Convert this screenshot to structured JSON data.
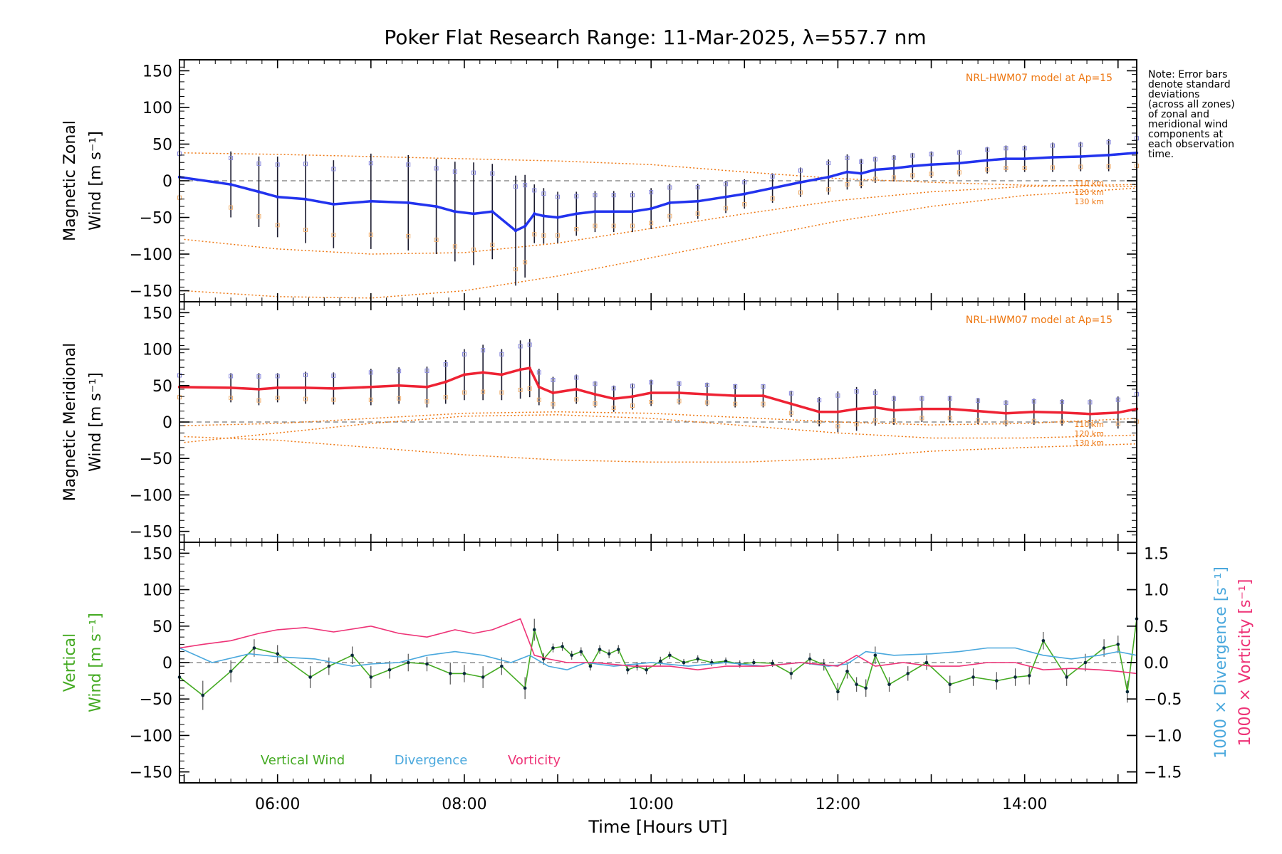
{
  "figure_title": "Poker Flat Research Range: 11-Mar-2025, λ=557.7 nm",
  "note_lines": [
    "Note: Error bars",
    "denote standard",
    "deviations",
    "(across all zones)",
    "of zonal and",
    "meridional wind",
    "components at",
    "each observation",
    "time."
  ],
  "colors": {
    "zonal": "#2233ee",
    "meridional": "#ee2233",
    "vertical": "#44aa22",
    "divergence": "#4aa8dd",
    "vorticity": "#ee3377",
    "model": "#ee7711",
    "errorbar": "#1a1a2e",
    "scatter": "#8888dd"
  },
  "chart_data": [
    {
      "type": "line",
      "panel": "zonal",
      "ylabel_lines": [
        "Magnetic Zonal",
        "Wind [m s⁻¹]"
      ],
      "ylim": [
        -165,
        165
      ],
      "yticks": [
        -150,
        -100,
        -50,
        0,
        50,
        100,
        150
      ],
      "annotation": "NRL-HWM07 model at Ap=15",
      "model_labels": [
        "110 km",
        "120 km",
        "130 km"
      ],
      "model_curves": [
        {
          "name": "110 km",
          "x": [
            5,
            6,
            7,
            8,
            9,
            10,
            11,
            12,
            13,
            14,
            15.2
          ],
          "y": [
            38,
            36,
            33,
            30,
            27,
            22,
            12,
            3,
            -2,
            -6,
            -8
          ]
        },
        {
          "name": "120 km",
          "x": [
            5,
            6,
            7,
            8,
            9,
            10,
            11,
            12,
            13,
            14,
            15.2
          ],
          "y": [
            -80,
            -93,
            -100,
            -98,
            -85,
            -65,
            -45,
            -27,
            -15,
            -8,
            -5
          ]
        },
        {
          "name": "130 km",
          "x": [
            5,
            6,
            7,
            8,
            9,
            10,
            11,
            12,
            13,
            14,
            15.2
          ],
          "y": [
            -150,
            -158,
            -160,
            -150,
            -130,
            -105,
            -80,
            -55,
            -35,
            -20,
            -10
          ]
        }
      ],
      "series": [
        {
          "name": "Magnetic Zonal Wind",
          "x": [
            4.95,
            5.5,
            5.8,
            6.0,
            6.3,
            6.6,
            7.0,
            7.4,
            7.7,
            7.9,
            8.1,
            8.3,
            8.55,
            8.65,
            8.75,
            8.85,
            9.0,
            9.2,
            9.4,
            9.6,
            9.8,
            10.0,
            10.2,
            10.5,
            10.8,
            11.0,
            11.3,
            11.6,
            11.9,
            12.1,
            12.25,
            12.4,
            12.6,
            12.8,
            13.0,
            13.3,
            13.6,
            13.8,
            14.0,
            14.3,
            14.6,
            14.9,
            15.2
          ],
          "y": [
            5,
            -5,
            -15,
            -22,
            -25,
            -32,
            -28,
            -30,
            -35,
            -42,
            -45,
            -42,
            -68,
            -62,
            -45,
            -48,
            -50,
            -45,
            -42,
            -42,
            -42,
            -38,
            -30,
            -28,
            -22,
            -18,
            -10,
            -2,
            5,
            12,
            10,
            15,
            17,
            20,
            22,
            24,
            28,
            30,
            30,
            32,
            33,
            35,
            38
          ],
          "err": [
            40,
            45,
            48,
            55,
            60,
            60,
            65,
            65,
            65,
            68,
            70,
            65,
            75,
            70,
            40,
            38,
            35,
            30,
            28,
            28,
            28,
            28,
            26,
            24,
            22,
            20,
            20,
            20,
            24,
            24,
            20,
            18,
            18,
            18,
            18,
            18,
            18,
            18,
            18,
            20,
            20,
            22,
            25
          ]
        }
      ]
    },
    {
      "type": "line",
      "panel": "meridional",
      "ylabel_lines": [
        "Magnetic Meridional",
        "Wind [m s⁻¹]"
      ],
      "ylim": [
        -165,
        165
      ],
      "yticks": [
        -150,
        -100,
        -50,
        0,
        50,
        100,
        150
      ],
      "annotation": "NRL-HWM07 model at Ap=15",
      "model_labels": [
        "110 km",
        "120 km",
        "130 km"
      ],
      "model_curves": [
        {
          "name": "110 km",
          "x": [
            5,
            6,
            7,
            8,
            9,
            10,
            11,
            12,
            13,
            14,
            15.2
          ],
          "y": [
            -5,
            -2,
            5,
            12,
            14,
            12,
            6,
            0,
            -4,
            -2,
            5
          ]
        },
        {
          "name": "120 km",
          "x": [
            5,
            6,
            7,
            8,
            9,
            10,
            11,
            12,
            13,
            14,
            15.2
          ],
          "y": [
            -28,
            -15,
            -2,
            8,
            10,
            5,
            -5,
            -15,
            -22,
            -22,
            -18
          ]
        },
        {
          "name": "130 km",
          "x": [
            5,
            6,
            7,
            8,
            9,
            10,
            11,
            12,
            13,
            14,
            15.2
          ],
          "y": [
            -20,
            -25,
            -35,
            -45,
            -52,
            -55,
            -55,
            -50,
            -40,
            -35,
            -30
          ]
        }
      ],
      "series": [
        {
          "name": "Magnetic Meridional Wind",
          "x": [
            4.95,
            5.5,
            5.8,
            6.0,
            6.3,
            6.6,
            7.0,
            7.3,
            7.6,
            7.8,
            8.0,
            8.2,
            8.4,
            8.6,
            8.7,
            8.8,
            8.95,
            9.2,
            9.4,
            9.6,
            9.8,
            10.0,
            10.3,
            10.6,
            10.9,
            11.2,
            11.5,
            11.8,
            12.0,
            12.2,
            12.4,
            12.6,
            12.9,
            13.2,
            13.5,
            13.8,
            14.1,
            14.4,
            14.7,
            15.0,
            15.2
          ],
          "y": [
            48,
            47,
            45,
            47,
            47,
            46,
            48,
            50,
            48,
            55,
            65,
            68,
            65,
            72,
            74,
            48,
            40,
            45,
            38,
            32,
            35,
            40,
            40,
            38,
            36,
            36,
            25,
            14,
            14,
            18,
            20,
            16,
            18,
            18,
            15,
            12,
            14,
            13,
            11,
            13,
            18
          ],
          "err": [
            20,
            20,
            22,
            20,
            22,
            22,
            25,
            25,
            28,
            30,
            35,
            38,
            35,
            40,
            40,
            25,
            22,
            20,
            18,
            18,
            18,
            18,
            16,
            16,
            16,
            16,
            18,
            20,
            28,
            30,
            25,
            20,
            18,
            18,
            18,
            18,
            18,
            18,
            20,
            22,
            25
          ]
        }
      ]
    },
    {
      "type": "line",
      "panel": "vertical",
      "ylabel_lines": [
        "Vertical",
        "Wind [m s⁻¹]"
      ],
      "ylim": [
        -165,
        165
      ],
      "yticks": [
        -150,
        -100,
        -50,
        0,
        50,
        100,
        150
      ],
      "y2label_lines": [
        "1000 × Vorticity [s⁻¹]",
        "1000 × Divergence [s⁻¹]"
      ],
      "y2lim": [
        -1.65,
        1.65
      ],
      "y2ticks": [
        -1.5,
        -1.0,
        -0.5,
        0.0,
        0.5,
        1.0,
        1.5
      ],
      "y2ticklabels": [
        "−1.5",
        "−1.0",
        "−0.5",
        "0.0",
        "0.5",
        "1.0",
        "1.5"
      ],
      "xlabel": "Time [Hours UT]",
      "xlim": [
        4.95,
        15.2
      ],
      "xticks": [
        6,
        8,
        10,
        12,
        14
      ],
      "xticklabels": [
        "06:00",
        "08:00",
        "10:00",
        "12:00",
        "14:00"
      ],
      "legend": [
        "Vertical Wind",
        "Divergence",
        "Vorticity"
      ],
      "series": [
        {
          "name": "Vertical Wind",
          "axis": "left",
          "x": [
            4.95,
            5.2,
            5.5,
            5.75,
            6.0,
            6.35,
            6.55,
            6.8,
            7.0,
            7.2,
            7.4,
            7.6,
            7.85,
            8.0,
            8.2,
            8.4,
            8.65,
            8.75,
            8.85,
            8.95,
            9.05,
            9.15,
            9.25,
            9.35,
            9.45,
            9.55,
            9.65,
            9.75,
            9.85,
            9.95,
            10.1,
            10.2,
            10.35,
            10.5,
            10.65,
            10.8,
            10.95,
            11.1,
            11.3,
            11.5,
            11.7,
            11.85,
            12.0,
            12.1,
            12.2,
            12.3,
            12.4,
            12.55,
            12.75,
            12.95,
            13.2,
            13.45,
            13.7,
            13.9,
            14.05,
            14.2,
            14.45,
            14.65,
            14.85,
            15.0,
            15.1,
            15.2
          ],
          "y": [
            -20,
            -45,
            -12,
            20,
            12,
            -20,
            -5,
            10,
            -20,
            -10,
            0,
            -2,
            -15,
            -15,
            -20,
            -5,
            -35,
            45,
            5,
            20,
            22,
            10,
            15,
            -5,
            18,
            12,
            18,
            -10,
            -5,
            -10,
            2,
            10,
            0,
            5,
            0,
            2,
            -2,
            0,
            -1,
            -15,
            5,
            -3,
            -40,
            -12,
            -30,
            -35,
            10,
            -30,
            -15,
            0,
            -30,
            -20,
            -25,
            -20,
            -18,
            30,
            -20,
            0,
            20,
            25,
            -40,
            60
          ],
          "err": [
            15,
            20,
            15,
            12,
            12,
            15,
            12,
            12,
            15,
            12,
            12,
            10,
            15,
            12,
            15,
            12,
            15,
            15,
            8,
            6,
            6,
            6,
            6,
            6,
            6,
            6,
            6,
            6,
            6,
            6,
            6,
            5,
            5,
            5,
            5,
            5,
            5,
            5,
            5,
            8,
            8,
            8,
            12,
            10,
            10,
            12,
            12,
            10,
            10,
            10,
            12,
            12,
            12,
            12,
            12,
            12,
            12,
            12,
            12,
            12,
            15,
            15
          ]
        },
        {
          "name": "Divergence",
          "axis": "right",
          "x": [
            4.95,
            5.3,
            5.7,
            6.0,
            6.4,
            6.8,
            7.0,
            7.3,
            7.6,
            7.9,
            8.2,
            8.5,
            8.7,
            8.9,
            9.1,
            9.3,
            9.6,
            10.0,
            10.4,
            10.8,
            11.2,
            11.6,
            11.9,
            12.1,
            12.3,
            12.6,
            13.0,
            13.3,
            13.6,
            13.9,
            14.2,
            14.5,
            14.8,
            15.0,
            15.2
          ],
          "y": [
            0.2,
            0.0,
            0.12,
            0.08,
            0.05,
            -0.05,
            -0.02,
            0.0,
            0.1,
            0.15,
            0.1,
            0.0,
            0.1,
            -0.05,
            -0.1,
            0.0,
            -0.05,
            0.0,
            -0.05,
            0.0,
            -0.05,
            0.0,
            -0.05,
            -0.02,
            0.15,
            0.1,
            0.12,
            0.15,
            0.2,
            0.2,
            0.1,
            0.05,
            0.1,
            0.15,
            0.1
          ]
        },
        {
          "name": "Vorticity",
          "axis": "right",
          "x": [
            4.95,
            5.2,
            5.5,
            5.8,
            6.0,
            6.3,
            6.6,
            7.0,
            7.3,
            7.6,
            7.9,
            8.1,
            8.3,
            8.5,
            8.6,
            8.75,
            8.9,
            9.1,
            9.4,
            9.8,
            10.2,
            10.5,
            10.8,
            11.2,
            11.6,
            12.0,
            12.2,
            12.4,
            12.7,
            13.0,
            13.3,
            13.6,
            13.9,
            14.2,
            14.5,
            14.8,
            15.0,
            15.2
          ],
          "y": [
            0.2,
            0.25,
            0.3,
            0.4,
            0.45,
            0.48,
            0.42,
            0.5,
            0.4,
            0.35,
            0.45,
            0.4,
            0.45,
            0.55,
            0.6,
            0.1,
            0.05,
            0.0,
            0.0,
            -0.05,
            -0.05,
            -0.1,
            -0.05,
            -0.05,
            0.0,
            -0.05,
            0.1,
            -0.05,
            0.0,
            -0.05,
            -0.05,
            0.0,
            0.0,
            -0.1,
            -0.08,
            -0.1,
            -0.12,
            -0.15
          ]
        }
      ]
    }
  ]
}
